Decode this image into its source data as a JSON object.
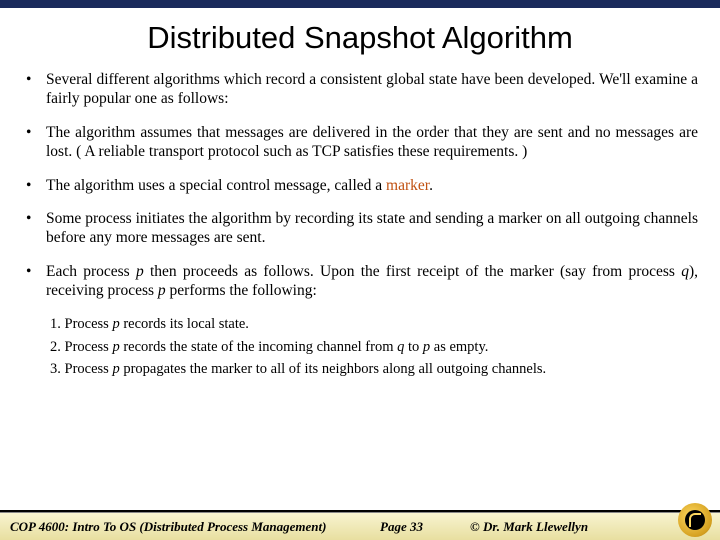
{
  "colors": {
    "topbar": "#1a2a5c",
    "marker": "#c05010",
    "footer_grad_top": "#f8f4d0",
    "footer_grad_bot": "#e8dfa0"
  },
  "title": "Distributed Snapshot Algorithm",
  "bullets": [
    {
      "html": "Several different algorithms which record a consistent global state have been developed.  We'll examine a fairly popular one as follows:"
    },
    {
      "html": "The algorithm assumes that messages are delivered in the order that they are sent and no messages are lost.  ( A reliable transport protocol such as TCP satisfies these requirements. )"
    },
    {
      "html": "The algorithm uses a special control message, called a <span class=\"marker\">marker</span>."
    },
    {
      "html": "Some process initiates the algorithm by recording its state and sending a marker on all outgoing channels before any more messages are sent."
    },
    {
      "html": "Each process <span class=\"italic\">p</span> then proceeds as follows.  Upon the first receipt of the marker (say from process <span class=\"italic\">q</span>), receiving process <span class=\"italic\">p</span> performs the following:"
    }
  ],
  "steps": [
    "1.   Process p records its local state.",
    "2.   Process p records the state of the incoming channel from q to p as empty.",
    "3.   Process p propagates the marker to all of its neighbors along all outgoing channels."
  ],
  "footer": {
    "course": "COP 4600: Intro To OS  (Distributed Process Management)",
    "page": "Page 33",
    "author": "© Dr. Mark Llewellyn"
  }
}
